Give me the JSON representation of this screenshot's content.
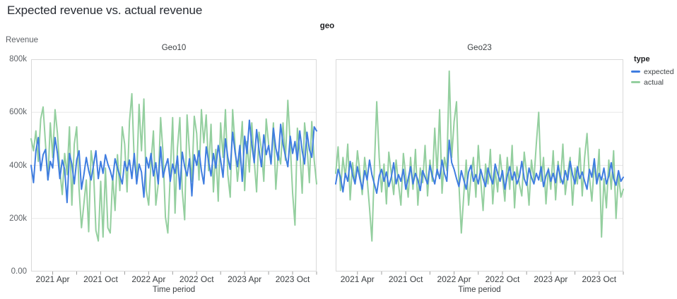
{
  "header": {
    "title": "Expected revenue vs. actual revenue"
  },
  "chart_data": {
    "type": "line",
    "title": "Expected revenue vs. actual revenue",
    "facet_field": "geo",
    "xlabel": "Time period",
    "ylabel": "Revenue",
    "ylim": [
      0,
      800
    ],
    "y_unit": "thousands",
    "grid": true,
    "legend_position": "right",
    "legend": {
      "title": "type",
      "entries": [
        {
          "label": "expected",
          "color": "#3f7de0"
        },
        {
          "label": "actual",
          "color": "#94cf9f"
        }
      ]
    },
    "series_order": [
      "expected",
      "actual"
    ],
    "y_ticks": [
      {
        "value": 0,
        "label": "0.00"
      },
      {
        "value": 200,
        "label": "200k"
      },
      {
        "value": 400,
        "label": "400k"
      },
      {
        "value": 600,
        "label": "600k"
      },
      {
        "value": 800,
        "label": "800k"
      }
    ],
    "x_domain_months": [
      0.3,
      36
    ],
    "x_ticks_major": [
      {
        "month": 3,
        "label": "2021 Apr"
      },
      {
        "month": 9,
        "label": "2021 Oct"
      },
      {
        "month": 15,
        "label": "2022 Apr"
      },
      {
        "month": 21,
        "label": "2022 Oct"
      },
      {
        "month": 27,
        "label": "2023 Apr"
      },
      {
        "month": 33,
        "label": "2023 Oct"
      }
    ],
    "x_ticks_minor_months": [
      6,
      12,
      18,
      24,
      30,
      36
    ],
    "facets": [
      {
        "label": "Geo10",
        "series": {
          "expected": [
            400,
            335,
            455,
            505,
            380,
            440,
            460,
            345,
            415,
            390,
            505,
            445,
            350,
            420,
            385,
            260,
            445,
            405,
            330,
            420,
            455,
            310,
            365,
            430,
            380,
            345,
            400,
            455,
            350,
            415,
            370,
            440,
            405,
            380,
            345,
            425,
            390,
            360,
            330,
            415,
            380,
            420,
            350,
            445,
            330,
            405,
            375,
            280,
            430,
            390,
            445,
            360,
            410,
            330,
            470,
            355,
            395,
            425,
            340,
            405,
            370,
            435,
            310,
            450,
            395,
            360,
            425,
            285,
            440,
            400,
            455,
            380,
            330,
            470,
            415,
            360,
            445,
            390,
            475,
            420,
            355,
            500,
            430,
            385,
            525,
            450,
            395,
            475,
            340,
            510,
            445,
            570,
            480,
            410,
            535,
            460,
            395,
            515,
            440,
            475,
            405,
            540,
            465,
            420,
            555,
            480,
            435,
            395,
            510,
            445,
            490,
            420,
            530,
            455,
            405,
            525,
            460,
            430,
            545,
            530
          ],
          "actual": [
            500,
            455,
            530,
            415,
            575,
            620,
            480,
            345,
            560,
            430,
            610,
            520,
            380,
            290,
            445,
            365,
            545,
            250,
            480,
            545,
            310,
            165,
            255,
            345,
            150,
            455,
            385,
            155,
            115,
            340,
            130,
            390,
            165,
            145,
            360,
            230,
            440,
            305,
            545,
            480,
            300,
            565,
            670,
            410,
            355,
            630,
            455,
            650,
            305,
            250,
            410,
            530,
            250,
            330,
            580,
            445,
            205,
            145,
            365,
            580,
            220,
            465,
            580,
            305,
            195,
            590,
            450,
            340,
            585,
            520,
            345,
            610,
            485,
            590,
            380,
            555,
            300,
            460,
            265,
            560,
            430,
            610,
            365,
            280,
            610,
            475,
            340,
            430,
            565,
            305,
            490,
            375,
            560,
            420,
            300,
            525,
            460,
            340,
            575,
            480,
            405,
            560,
            310,
            450,
            405,
            560,
            420,
            645,
            480,
            295,
            175,
            540,
            460,
            295,
            560,
            475,
            335,
            565,
            420,
            330
          ]
        }
      },
      {
        "label": "Geo23",
        "series": {
          "expected": [
            330,
            385,
            355,
            300,
            370,
            340,
            415,
            365,
            330,
            395,
            350,
            310,
            380,
            345,
            420,
            365,
            330,
            295,
            360,
            385,
            340,
            375,
            320,
            355,
            410,
            330,
            365,
            340,
            385,
            310,
            350,
            395,
            330,
            370,
            345,
            305,
            380,
            355,
            330,
            400,
            360,
            330,
            385,
            350,
            420,
            370,
            340,
            495,
            410,
            385,
            350,
            320,
            380,
            345,
            310,
            375,
            400,
            340,
            365,
            330,
            385,
            350,
            320,
            390,
            355,
            330,
            405,
            370,
            340,
            380,
            310,
            360,
            395,
            345,
            375,
            330,
            355,
            415,
            350,
            325,
            390,
            355,
            330,
            370,
            345,
            395,
            320,
            360,
            385,
            340,
            370,
            335,
            400,
            355,
            330,
            380,
            345,
            415,
            365,
            330,
            395,
            350,
            375,
            340,
            310,
            385,
            355,
            425,
            330,
            370,
            345,
            390,
            330,
            360,
            410,
            350,
            325,
            380,
            340,
            355
          ],
          "actual": [
            370,
            470,
            305,
            430,
            355,
            480,
            270,
            410,
            330,
            455,
            375,
            290,
            430,
            350,
            240,
            115,
            390,
            640,
            430,
            300,
            405,
            255,
            450,
            370,
            290,
            420,
            330,
            250,
            445,
            360,
            280,
            430,
            310,
            460,
            250,
            390,
            335,
            475,
            285,
            420,
            340,
            540,
            365,
            610,
            295,
            430,
            380,
            755,
            430,
            565,
            640,
            330,
            145,
            290,
            420,
            250,
            360,
            430,
            280,
            475,
            345,
            230,
            405,
            330,
            460,
            255,
            385,
            300,
            440,
            355,
            265,
            430,
            310,
            475,
            240,
            395,
            330,
            285,
            450,
            370,
            250,
            420,
            345,
            480,
            600,
            340,
            430,
            255,
            390,
            310,
            455,
            270,
            415,
            335,
            480,
            290,
            370,
            430,
            250,
            390,
            330,
            465,
            285,
            430,
            520,
            355,
            265,
            405,
            330,
            460,
            130,
            350,
            240,
            420,
            310,
            455,
            200,
            365,
            280,
            310
          ]
        }
      }
    ]
  }
}
